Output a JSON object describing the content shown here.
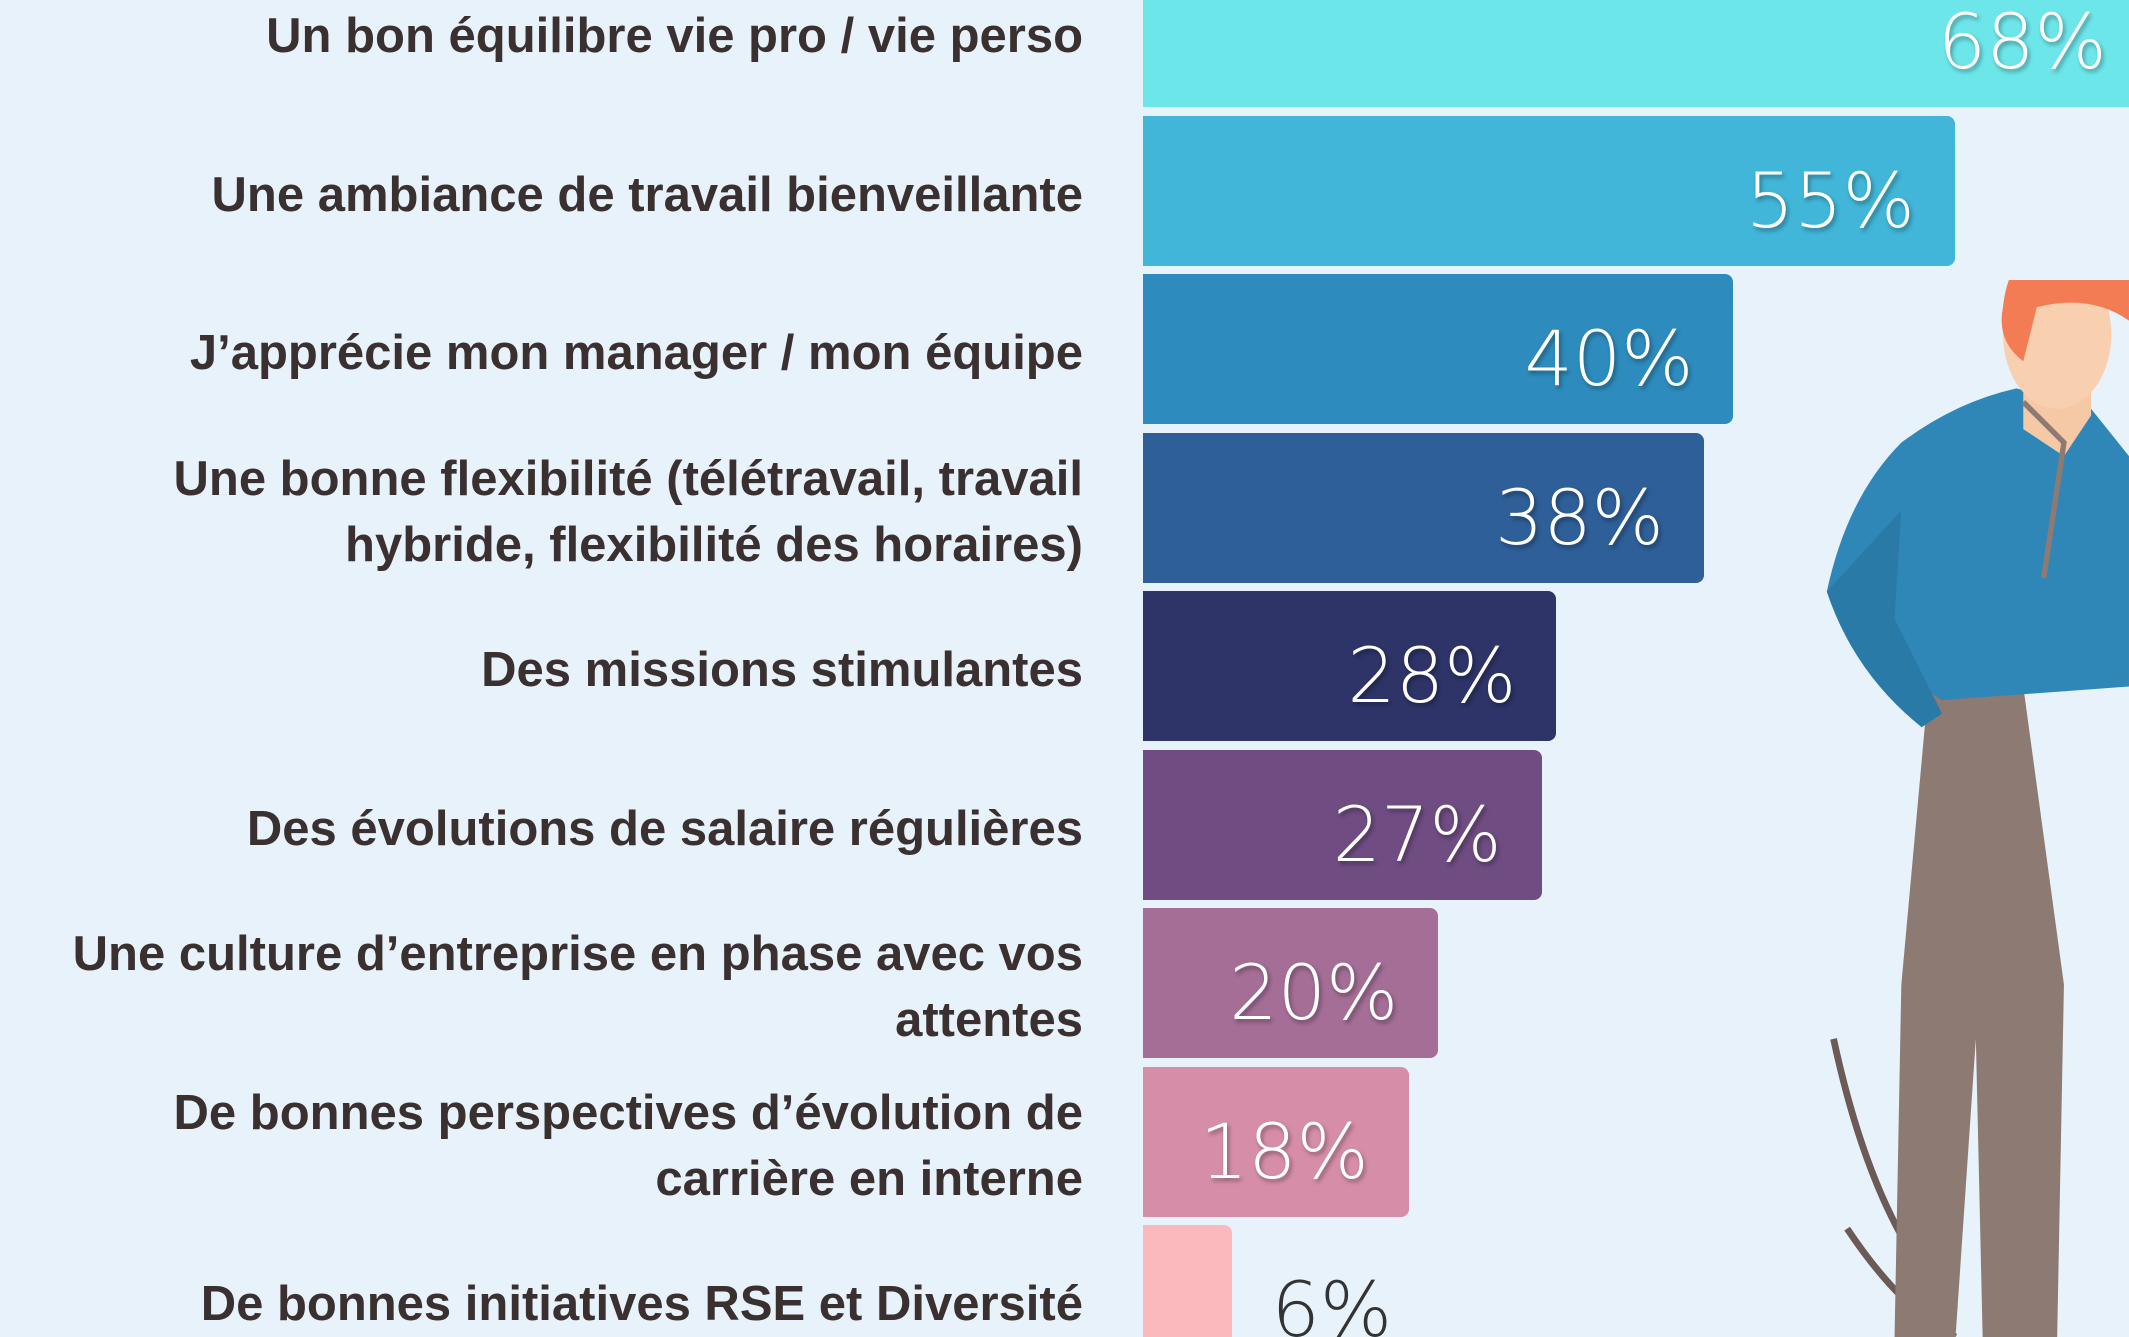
{
  "chart_data": {
    "type": "bar",
    "orientation": "horizontal",
    "categories": [
      "Un bon équilibre vie pro / vie perso",
      "Une ambiance de travail bienveillante",
      "J’apprécie mon manager / mon équipe",
      "Une bonne flexibilité (télétravail, travail hybride, flexibilité des horaires)",
      "Des missions stimulantes",
      "Des évolutions de salaire régulières",
      "Une culture d’entreprise en phase avec vos attentes",
      "De bonnes perspectives d’évolution de carrière en interne",
      "De bonnes initiatives RSE et Diversité"
    ],
    "values": [
      68,
      55,
      40,
      38,
      28,
      27,
      20,
      18,
      6
    ],
    "value_labels": [
      "68%",
      "55%",
      "40%",
      "38%",
      "28%",
      "27%",
      "20%",
      "18%",
      "6%"
    ],
    "colors": [
      "#6de6ea",
      "#41b6d8",
      "#2d8cbd",
      "#2e5f98",
      "#2e3468",
      "#6f4c82",
      "#a46e96",
      "#d68ea8",
      "#fbb8bd"
    ]
  }
}
